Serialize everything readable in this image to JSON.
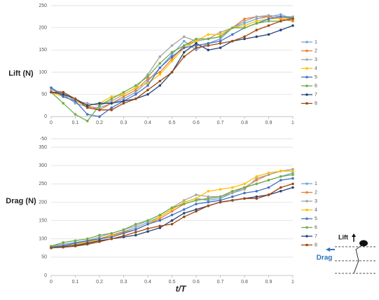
{
  "chart_data": [
    {
      "type": "line",
      "ylabel": "Lift (N)",
      "x": [
        0,
        0.05,
        0.1,
        0.15,
        0.2,
        0.25,
        0.3,
        0.35,
        0.4,
        0.45,
        0.5,
        0.55,
        0.6,
        0.65,
        0.7,
        0.75,
        0.8,
        0.85,
        0.9,
        0.95,
        1
      ],
      "xlim": [
        0,
        1
      ],
      "xticks": [
        0,
        0.1,
        0.2,
        0.3,
        0.4,
        0.5,
        0.6,
        0.7,
        0.8,
        0.9,
        1
      ],
      "ylim": [
        -50,
        250
      ],
      "yticks": [
        -50,
        0,
        50,
        100,
        150,
        200,
        250
      ],
      "grid": true,
      "legend": "right",
      "series": [
        {
          "name": "1",
          "color": "#7aa6d6",
          "values": [
            65,
            50,
            30,
            22,
            20,
            30,
            40,
            55,
            80,
            110,
            140,
            170,
            150,
            165,
            175,
            200,
            210,
            220,
            225,
            230,
            220
          ]
        },
        {
          "name": "2",
          "color": "#ed7d31",
          "values": [
            55,
            45,
            35,
            25,
            15,
            30,
            45,
            60,
            85,
            100,
            130,
            160,
            170,
            175,
            180,
            200,
            220,
            225,
            225,
            220,
            215
          ]
        },
        {
          "name": "3",
          "color": "#a5a5a5",
          "values": [
            60,
            55,
            35,
            30,
            25,
            35,
            50,
            65,
            95,
            135,
            160,
            180,
            170,
            175,
            190,
            200,
            215,
            225,
            228,
            225,
            225
          ]
        },
        {
          "name": "4",
          "color": "#ffc000",
          "values": [
            55,
            45,
            35,
            25,
            30,
            45,
            50,
            65,
            75,
            95,
            125,
            155,
            170,
            185,
            185,
            200,
            205,
            215,
            220,
            222,
            220
          ]
        },
        {
          "name": "5",
          "color": "#4472c4",
          "values": [
            65,
            45,
            35,
            5,
            0,
            20,
            35,
            50,
            70,
            110,
            135,
            155,
            160,
            165,
            170,
            185,
            200,
            210,
            220,
            225,
            222
          ]
        },
        {
          "name": "6",
          "color": "#70ad47",
          "values": [
            55,
            30,
            5,
            -10,
            25,
            40,
            55,
            70,
            90,
            120,
            145,
            160,
            175,
            175,
            180,
            200,
            200,
            210,
            215,
            215,
            222
          ]
        },
        {
          "name": "7",
          "color": "#264478",
          "values": [
            55,
            50,
            40,
            25,
            30,
            30,
            35,
            40,
            50,
            70,
            100,
            145,
            165,
            150,
            155,
            170,
            175,
            180,
            185,
            195,
            205
          ]
        },
        {
          "name": "8",
          "color": "#9e480e",
          "values": [
            55,
            55,
            40,
            20,
            15,
            15,
            30,
            40,
            60,
            80,
            100,
            135,
            155,
            160,
            165,
            170,
            180,
            195,
            205,
            215,
            220
          ]
        }
      ]
    },
    {
      "type": "line",
      "ylabel": "Drag (N)",
      "xlabel": "t/T",
      "annotations": [
        "Lift",
        "Drag"
      ],
      "x": [
        0,
        0.05,
        0.1,
        0.15,
        0.2,
        0.25,
        0.3,
        0.35,
        0.4,
        0.45,
        0.5,
        0.55,
        0.6,
        0.65,
        0.7,
        0.75,
        0.8,
        0.85,
        0.9,
        0.95,
        1
      ],
      "xlim": [
        0,
        1
      ],
      "xticks": [
        0,
        0.1,
        0.2,
        0.3,
        0.4,
        0.5,
        0.6,
        0.7,
        0.8,
        0.9,
        1
      ],
      "ylim": [
        0,
        350
      ],
      "yticks": [
        0,
        50,
        100,
        150,
        200,
        250,
        300,
        350
      ],
      "grid": true,
      "legend": "right",
      "series": [
        {
          "name": "1",
          "color": "#7aa6d6",
          "values": [
            80,
            85,
            90,
            95,
            100,
            110,
            120,
            130,
            145,
            160,
            180,
            200,
            210,
            205,
            210,
            225,
            240,
            250,
            260,
            270,
            280
          ]
        },
        {
          "name": "2",
          "color": "#ed7d31",
          "values": [
            78,
            82,
            85,
            92,
            100,
            110,
            118,
            125,
            140,
            155,
            175,
            195,
            205,
            210,
            215,
            230,
            240,
            260,
            275,
            285,
            285
          ]
        },
        {
          "name": "3",
          "color": "#a5a5a5",
          "values": [
            80,
            82,
            88,
            95,
            105,
            115,
            125,
            135,
            150,
            165,
            185,
            205,
            220,
            215,
            215,
            225,
            235,
            265,
            275,
            285,
            290
          ]
        },
        {
          "name": "4",
          "color": "#ffc000",
          "values": [
            78,
            80,
            85,
            90,
            98,
            108,
            115,
            125,
            140,
            160,
            180,
            200,
            210,
            230,
            235,
            240,
            250,
            270,
            280,
            285,
            285
          ]
        },
        {
          "name": "5",
          "color": "#4472c4",
          "values": [
            78,
            80,
            88,
            95,
            100,
            105,
            115,
            125,
            140,
            150,
            165,
            180,
            195,
            200,
            205,
            215,
            225,
            230,
            240,
            260,
            265
          ]
        },
        {
          "name": "6",
          "color": "#70ad47",
          "values": [
            80,
            90,
            95,
            100,
            110,
            115,
            125,
            140,
            150,
            165,
            185,
            195,
            205,
            210,
            215,
            230,
            240,
            250,
            260,
            270,
            275
          ]
        },
        {
          "name": "7",
          "color": "#264478",
          "values": [
            75,
            78,
            82,
            88,
            95,
            100,
            105,
            110,
            120,
            130,
            150,
            170,
            180,
            190,
            200,
            205,
            210,
            215,
            220,
            230,
            240
          ]
        },
        {
          "name": "8",
          "color": "#9e480e",
          "values": [
            75,
            77,
            80,
            85,
            92,
            100,
            108,
            118,
            128,
            135,
            140,
            160,
            175,
            190,
            200,
            205,
            210,
            210,
            220,
            240,
            250
          ]
        }
      ]
    }
  ]
}
